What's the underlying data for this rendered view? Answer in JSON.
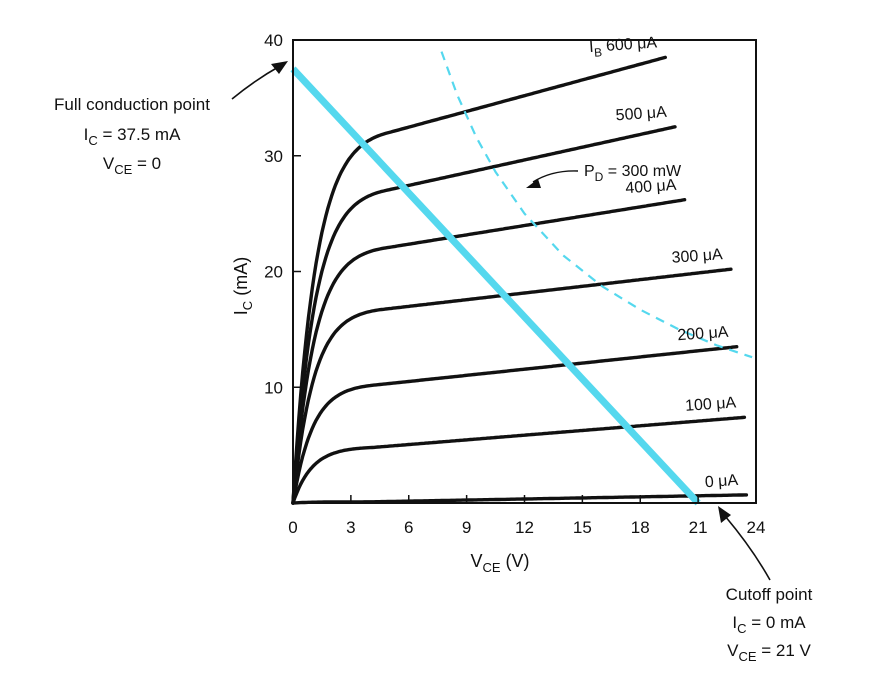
{
  "chart_data": {
    "type": "line",
    "xlabel": {
      "main": "V",
      "sub": "CE",
      "tail": " (V)"
    },
    "ylabel": {
      "main": "I",
      "sub": "C",
      "tail": " (mA)"
    },
    "xlim": [
      0,
      24
    ],
    "ylim": [
      0,
      40
    ],
    "xticks": [
      0,
      3,
      6,
      9,
      12,
      15,
      18,
      21,
      24
    ],
    "yticks": [
      10,
      20,
      30,
      40
    ],
    "grid": false,
    "series": [
      {
        "name": "I_B 600 µA",
        "label_pre": "I",
        "label_sub": "B",
        "label_post": " 600 μA",
        "sat": 32.0,
        "end_x": 19.3,
        "end_y": 38.5
      },
      {
        "name": "500 µA",
        "label_pre": "500 μA",
        "label_sub": "",
        "label_post": "",
        "sat": 27.0,
        "end_x": 19.8,
        "end_y": 32.5
      },
      {
        "name": "400 µA",
        "label_pre": "400 μA",
        "label_sub": "",
        "label_post": "",
        "sat": 22.0,
        "end_x": 20.3,
        "end_y": 26.2
      },
      {
        "name": "300 µA",
        "label_pre": "300 μA",
        "label_sub": "",
        "label_post": "",
        "sat": 16.7,
        "end_x": 22.7,
        "end_y": 20.2
      },
      {
        "name": "200 µA",
        "label_pre": "200 μA",
        "label_sub": "",
        "label_post": "",
        "sat": 10.2,
        "end_x": 23.0,
        "end_y": 13.5
      },
      {
        "name": "100 µA",
        "label_pre": "100 μA",
        "label_sub": "",
        "label_post": "",
        "sat": 4.8,
        "end_x": 23.4,
        "end_y": 7.4
      },
      {
        "name": "0 µA",
        "label_pre": "0 μA",
        "label_sub": "",
        "label_post": "",
        "sat": 0.1,
        "end_x": 23.5,
        "end_y": 0.7
      }
    ],
    "load_line": {
      "x": [
        0,
        21
      ],
      "y": [
        37.5,
        0
      ],
      "color": "#55d8ee"
    },
    "power_curve": {
      "label_pre": "P",
      "label_sub": "D",
      "label_post": " = 300 mW",
      "x": [
        7.7,
        8.5,
        9.5,
        10.5,
        12,
        14,
        16,
        18,
        20,
        22,
        23.8
      ],
      "y": [
        39.0,
        35.3,
        31.6,
        28.6,
        25.0,
        21.4,
        18.75,
        16.7,
        15.0,
        13.6,
        12.6
      ],
      "color": "#55d8ee"
    },
    "annotations": {
      "full_conduction": {
        "title": "Full conduction point",
        "line1_pre": "I",
        "line1_sub": "C",
        "line1_post": " = 37.5 mA",
        "line2_pre": "V",
        "line2_sub": "CE",
        "line2_post": " = 0"
      },
      "cutoff": {
        "title": "Cutoff point",
        "line1_pre": "I",
        "line1_sub": "C",
        "line1_post": " = 0 mA",
        "line2_pre": "V",
        "line2_sub": "CE",
        "line2_post": " = 21 V"
      }
    }
  }
}
